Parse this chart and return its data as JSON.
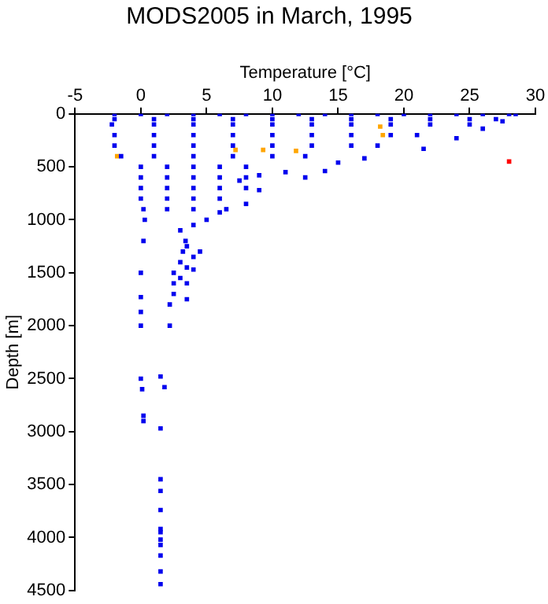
{
  "chart_data": {
    "type": "scatter",
    "title": "MODS2005 in March, 1995",
    "xlabel": "Temperature [°C]",
    "ylabel": "Depth [m]",
    "xlim": [
      -5,
      30
    ],
    "xticks": [
      -5,
      0,
      5,
      10,
      15,
      20,
      25,
      30
    ],
    "ylim": [
      4500,
      0
    ],
    "yticks": [
      0,
      500,
      1000,
      1500,
      2000,
      2500,
      3000,
      3500,
      4000,
      4500
    ],
    "grid": false,
    "legend": false,
    "marker": "square",
    "series": [
      {
        "color": "#0000ee",
        "x": [
          -2,
          0,
          2,
          4,
          6,
          8,
          10,
          12,
          14,
          16,
          18,
          20,
          22,
          24,
          26,
          28,
          28.5,
          -2,
          1,
          4,
          7,
          10,
          13,
          16,
          19,
          22,
          25,
          27,
          -2.2,
          1,
          4,
          7,
          10,
          13,
          16,
          19,
          22,
          25,
          -2,
          1,
          4,
          7,
          10,
          13,
          16,
          19,
          21,
          -2,
          1,
          4,
          7,
          10,
          13,
          16,
          18,
          -1.5,
          1,
          4,
          7,
          10,
          12.5,
          0,
          2,
          4,
          6,
          8,
          0,
          2,
          4,
          6,
          8,
          0,
          2,
          4,
          6,
          8,
          0,
          2,
          4,
          6,
          0.2,
          2,
          4,
          6.5,
          14,
          11,
          12.5,
          9,
          7.5,
          9,
          8,
          6,
          0.3,
          0.2,
          5,
          4,
          3,
          3.4,
          3.5,
          3.2,
          4,
          4.5,
          3,
          3.5,
          2.5,
          4,
          3,
          2.5,
          3.5,
          3.5,
          2.5,
          2.2,
          2.2,
          0,
          0,
          0,
          0,
          0,
          0.1,
          0.2,
          0.2,
          1.5,
          1.8,
          1.5,
          1.5,
          1.5,
          1.5,
          1.5,
          1.5,
          1.5,
          1.5,
          1.5,
          1.5,
          1.5,
          21.5,
          24,
          26,
          27.5,
          17,
          15
        ],
        "values": [
          0,
          0,
          0,
          0,
          0,
          0,
          0,
          0,
          0,
          0,
          0,
          0,
          0,
          0,
          0,
          0,
          0,
          50,
          50,
          50,
          50,
          50,
          50,
          50,
          50,
          50,
          50,
          50,
          100,
          100,
          100,
          100,
          100,
          100,
          100,
          100,
          100,
          100,
          200,
          200,
          200,
          200,
          200,
          200,
          200,
          200,
          200,
          300,
          300,
          300,
          300,
          300,
          300,
          300,
          300,
          400,
          400,
          400,
          400,
          400,
          400,
          500,
          500,
          500,
          500,
          500,
          600,
          600,
          600,
          600,
          600,
          700,
          700,
          700,
          700,
          700,
          800,
          800,
          800,
          800,
          900,
          900,
          900,
          900,
          540,
          550,
          600,
          580,
          630,
          720,
          850,
          930,
          1000,
          1200,
          1000,
          1050,
          1100,
          1200,
          1250,
          1300,
          1350,
          1300,
          1400,
          1450,
          1500,
          1470,
          1550,
          1600,
          1600,
          1750,
          1700,
          1800,
          2000,
          1500,
          1730,
          1870,
          2000,
          2500,
          2600,
          2850,
          2900,
          2480,
          2580,
          2970,
          3450,
          3560,
          3740,
          3920,
          3950,
          4020,
          4070,
          4170,
          4320,
          4440,
          330,
          230,
          140,
          70,
          420,
          460
        ]
      },
      {
        "color": "#ffa500",
        "x": [
          18.2,
          18.4,
          7.2,
          9.3,
          11.8,
          -1.8
        ],
        "values": [
          120,
          200,
          340,
          340,
          350,
          400
        ]
      },
      {
        "color": "#ff0000",
        "x": [
          28
        ],
        "values": [
          450
        ]
      }
    ]
  }
}
